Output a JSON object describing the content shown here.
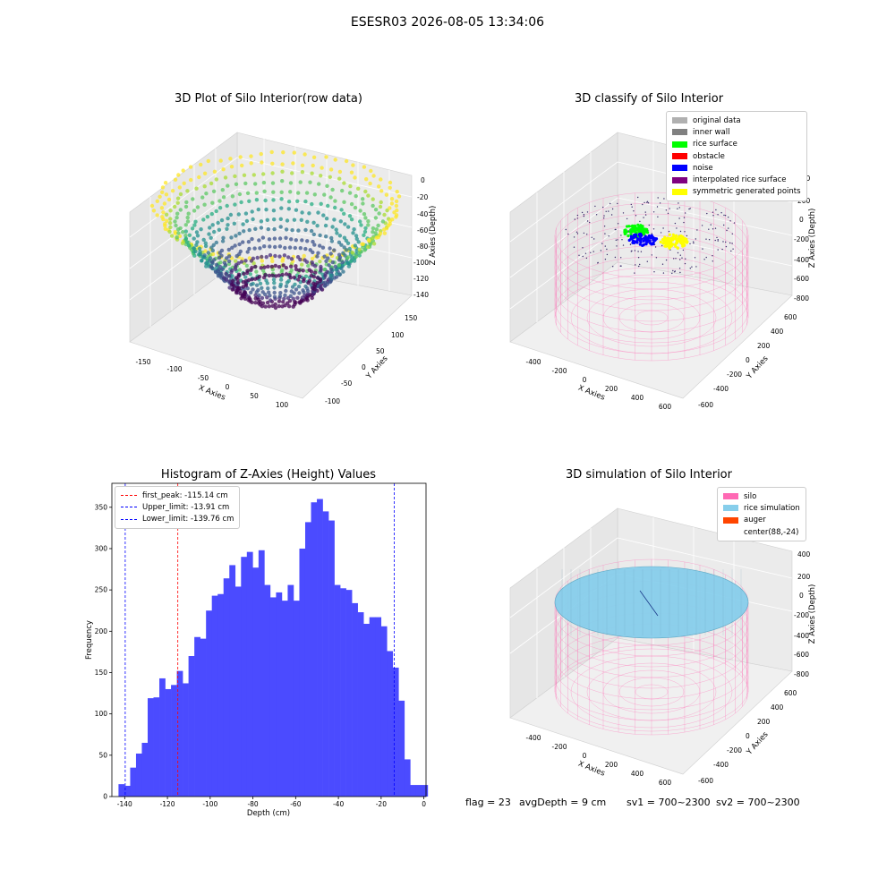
{
  "suptitle": "ESESR03 2026-08-05 13:34:06",
  "colors": {
    "hist_bar": "#4b4bff",
    "first_peak": "#ff0000",
    "limit": "#0000ff",
    "silo_wire": "#ff69b4",
    "rice_sim": "#87ceeb",
    "auger": "#ff4500"
  },
  "chart_data": [
    {
      "type": "scatter",
      "subtype": "3d-scatter",
      "title": "3D Plot of Silo Interior(row data)",
      "xlabel": "X Axies",
      "ylabel": "Y Axies",
      "zlabel": "Z Axies (Depth)",
      "x_ticks": [
        "-150",
        "-100",
        "-50",
        "0",
        "50",
        "100"
      ],
      "y_ticks": [
        "150",
        "100",
        "50",
        "0",
        "-50",
        "-100"
      ],
      "z_ticks": [
        "0",
        "-20",
        "-40",
        "-60",
        "-80",
        "-100",
        "-120",
        "-140"
      ],
      "zlim": [
        -145,
        0
      ],
      "colormap": "viridis",
      "grid": true
    },
    {
      "type": "scatter",
      "subtype": "3d-scatter",
      "title": "3D classify of Silo Interior",
      "xlabel": "X Axies",
      "ylabel": "Y Axies",
      "zlabel": "Z Axies (Depth)",
      "x_ticks": [
        "-400",
        "-200",
        "0",
        "200",
        "400",
        "600"
      ],
      "y_ticks": [
        "600",
        "400",
        "200",
        "0",
        "-200",
        "-400",
        "-600"
      ],
      "z_ticks": [
        "400",
        "200",
        "0",
        "-200",
        "-400",
        "-600",
        "-800"
      ],
      "legend_position": "top-right",
      "legend": [
        {
          "label": "original data",
          "color": "#b0b0b0"
        },
        {
          "label": "inner wall",
          "color": "#808080"
        },
        {
          "label": "rice surface",
          "color": "#00ff00"
        },
        {
          "label": "obstacle",
          "color": "#ff0000"
        },
        {
          "label": "noise",
          "color": "#0000ff"
        },
        {
          "label": "interpolated rice surface",
          "color": "#800080"
        },
        {
          "label": "symmetric generated points",
          "color": "#ffff00"
        }
      ],
      "grid": true
    },
    {
      "type": "bar",
      "subtype": "histogram",
      "title": "Histogram of Z-Axies (Height) Values",
      "xlabel": "Depth (cm)",
      "ylabel": "Frequency",
      "xlim": [
        -146,
        1
      ],
      "ylim": [
        0,
        379
      ],
      "x_ticks": [
        -140,
        -120,
        -100,
        -80,
        -60,
        -40,
        -20,
        0
      ],
      "y_ticks": [
        0,
        50,
        100,
        150,
        200,
        250,
        300,
        350
      ],
      "bin_start": -142.9,
      "bin_width": 2.73,
      "values": [
        15,
        13,
        35,
        52,
        65,
        119,
        120,
        143,
        130,
        135,
        152,
        137,
        170,
        193,
        191,
        225,
        243,
        245,
        264,
        280,
        254,
        290,
        296,
        277,
        298,
        256,
        241,
        247,
        237,
        256,
        237,
        300,
        332,
        356,
        360,
        345,
        334,
        256,
        252,
        250,
        234,
        223,
        209,
        217,
        217,
        206,
        176,
        156,
        116,
        45,
        14,
        14,
        14
      ],
      "lines": [
        {
          "label": "first_peak: -115.14 cm",
          "x": -115.14,
          "color": "#ff0000"
        },
        {
          "label": "Upper_limit: -13.91 cm",
          "x": -13.91,
          "color": "#0000ff"
        },
        {
          "label": "Lower_limit: -139.76 cm",
          "x": -139.76,
          "color": "#0000ff"
        }
      ],
      "legend_position": "top-left",
      "grid": false
    },
    {
      "type": "scatter",
      "subtype": "3d-wireframe",
      "title": "3D simulation of Silo Interior",
      "xlabel": "X Axies",
      "ylabel": "Y Axies",
      "zlabel": "Z Axies (Depth)",
      "x_ticks": [
        "-400",
        "-200",
        "0",
        "200",
        "400",
        "600"
      ],
      "y_ticks": [
        "600",
        "400",
        "200",
        "0",
        "-200",
        "-400",
        "-600"
      ],
      "z_ticks": [
        "400",
        "200",
        "0",
        "-200",
        "-400",
        "-600",
        "-800"
      ],
      "legend_position": "top-right",
      "legend": [
        {
          "label": "silo",
          "color": "#ff69b4"
        },
        {
          "label": "rice simulation",
          "color": "#87ceeb"
        },
        {
          "label": "auger",
          "color": "#ff4500"
        },
        {
          "label": "center(88,-24)",
          "color": ""
        }
      ],
      "grid": true
    }
  ],
  "footer": {
    "flag": "flag = 23",
    "avg": "avgDepth = 9 cm",
    "sv1": "sv1 = 700~2300",
    "sv2": "sv2 = 700~2300"
  }
}
